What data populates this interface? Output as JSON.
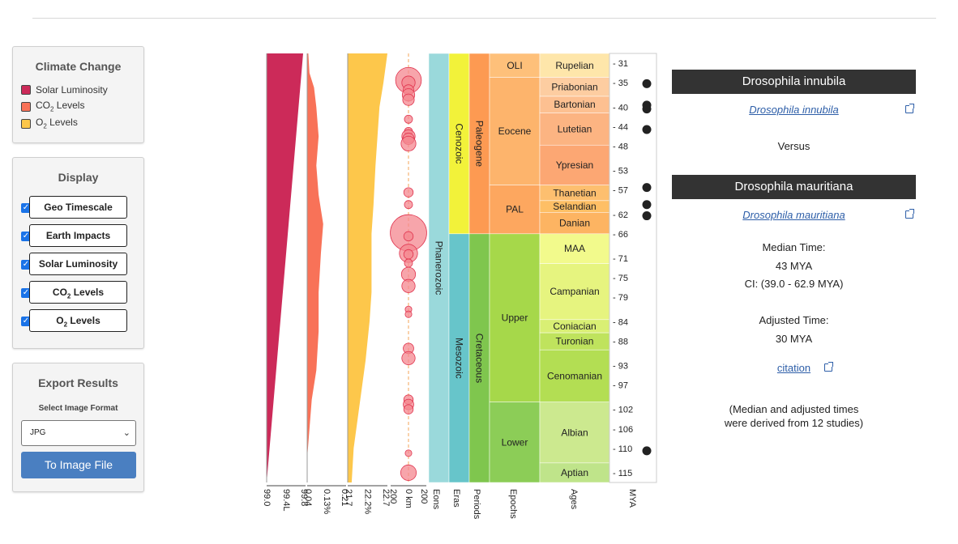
{
  "climate_panel": {
    "title": "Climate Change",
    "items": [
      {
        "label_pre": "Solar Luminosity",
        "sub": "",
        "label_post": "",
        "color": "#cc2a59"
      },
      {
        "label_pre": "CO",
        "sub": "2",
        "label_post": " Levels",
        "color": "#f87258"
      },
      {
        "label_pre": "O",
        "sub": "2",
        "label_post": " Levels",
        "color": "#fdc74b"
      }
    ]
  },
  "display_panel": {
    "title": "Display",
    "check_mark": "✓",
    "items": [
      {
        "label_pre": "Geo Timescale",
        "sub": "",
        "label_post": ""
      },
      {
        "label_pre": "Earth Impacts",
        "sub": "",
        "label_post": ""
      },
      {
        "label_pre": "Solar Luminosity",
        "sub": "",
        "label_post": ""
      },
      {
        "label_pre": "CO",
        "sub": "2",
        "label_post": " Levels"
      },
      {
        "label_pre": "O",
        "sub": "2",
        "label_post": " Levels"
      }
    ]
  },
  "export_panel": {
    "title": "Export Results",
    "select_label": "Select Image Format",
    "format": "JPG",
    "button": "To Image File"
  },
  "chart_data": {
    "type": "geologic-timeline",
    "axis_ticks": {
      "solar": [
        "99.0",
        "99.4L",
        "99.8"
      ],
      "co2": [
        "0.04",
        "0.13%",
        "0.21"
      ],
      "o2": [
        "21.7",
        "22.2%",
        "22.7"
      ],
      "impacts": [
        "200",
        "0 km",
        "200"
      ]
    },
    "column_labels": [
      "Eons",
      "Eras",
      "Periods",
      "Epochs",
      "Ages",
      "MYA"
    ],
    "mya_ticks": [
      "31",
      "35",
      "40",
      "44",
      "48",
      "53",
      "57",
      "62",
      "66",
      "71",
      "75",
      "79",
      "84",
      "88",
      "93",
      "97",
      "102",
      "106",
      "110",
      "115"
    ],
    "eons": [
      {
        "name": "Phanerozoic",
        "color": "#9ad9db",
        "start": 29,
        "end": 117
      }
    ],
    "eras": [
      {
        "name": "Cenozoic",
        "color": "#f2f23a",
        "start": 29,
        "end": 66
      },
      {
        "name": "Mesozoic",
        "color": "#67c5ca",
        "start": 66,
        "end": 117
      }
    ],
    "periods": [
      {
        "name": "Paleogene",
        "color": "#fd9a52",
        "start": 29,
        "end": 66
      },
      {
        "name": "Cretaceous",
        "color": "#7fc64e",
        "start": 66,
        "end": 117
      }
    ],
    "epochs": [
      {
        "name": "OLI",
        "color": "#fec07a",
        "start": 29,
        "end": 33.9
      },
      {
        "name": "Eocene",
        "color": "#fdb46c",
        "start": 33.9,
        "end": 56
      },
      {
        "name": "PAL",
        "color": "#fda75f",
        "start": 56,
        "end": 66
      },
      {
        "name": "Upper",
        "color": "#a6d84a",
        "start": 66,
        "end": 100.5
      },
      {
        "name": "Lower",
        "color": "#8ccd57",
        "start": 100.5,
        "end": 117
      }
    ],
    "ages": [
      {
        "name": "Rupelian",
        "color": "#fee6aa",
        "start": 29,
        "end": 33.9
      },
      {
        "name": "Priabonian",
        "color": "#fdcda1",
        "start": 33.9,
        "end": 37.8
      },
      {
        "name": "Bartonian",
        "color": "#fdc091",
        "start": 37.8,
        "end": 41.2
      },
      {
        "name": "Lutetian",
        "color": "#fcb482",
        "start": 41.2,
        "end": 47.8
      },
      {
        "name": "Ypresian",
        "color": "#fca773",
        "start": 47.8,
        "end": 56
      },
      {
        "name": "Thanetian",
        "color": "#fdbf6f",
        "start": 56,
        "end": 59.2
      },
      {
        "name": "Selandian",
        "color": "#febf65",
        "start": 59.2,
        "end": 61.6
      },
      {
        "name": "Danian",
        "color": "#fdb462",
        "start": 61.6,
        "end": 66
      },
      {
        "name": "MAA",
        "color": "#f2fa8c",
        "start": 66,
        "end": 72.1
      },
      {
        "name": "Campanian",
        "color": "#e6f47f",
        "start": 72.1,
        "end": 83.6
      },
      {
        "name": "Coniacian",
        "color": "#d9ef74",
        "start": 83.6,
        "end": 86.3
      },
      {
        "name": "Turonian",
        "color": "#bfe35d",
        "start": 86.3,
        "end": 89.8
      },
      {
        "name": "Cenomanian",
        "color": "#b3de53",
        "start": 89.8,
        "end": 100.5
      },
      {
        "name": "Albian",
        "color": "#cce98f",
        "start": 100.5,
        "end": 113
      },
      {
        "name": "Aptian",
        "color": "#bfe48a",
        "start": 113,
        "end": 117
      }
    ],
    "impacts": [
      {
        "mya": 34.5,
        "km": 30
      },
      {
        "mya": 35.0,
        "km": 8
      },
      {
        "mya": 36.5,
        "km": 5
      },
      {
        "mya": 37.5,
        "km": 7
      },
      {
        "mya": 38.5,
        "km": 6
      },
      {
        "mya": 42.5,
        "km": 3
      },
      {
        "mya": 45,
        "km": 3
      },
      {
        "mya": 46,
        "km": 8
      },
      {
        "mya": 46.5,
        "km": 6
      },
      {
        "mya": 47.5,
        "km": 10
      },
      {
        "mya": 57.5,
        "km": 4
      },
      {
        "mya": 60,
        "km": 3
      },
      {
        "mya": 65.8,
        "km": 60
      },
      {
        "mya": 66.5,
        "km": 4
      },
      {
        "mya": 70,
        "km": 15
      },
      {
        "mya": 70.2,
        "km": 4
      },
      {
        "mya": 72,
        "km": 3
      },
      {
        "mya": 74.3,
        "km": 9
      },
      {
        "mya": 76.7,
        "km": 8
      },
      {
        "mya": 81.5,
        "km": 2
      },
      {
        "mya": 82.5,
        "km": 2
      },
      {
        "mya": 89.5,
        "km": 5
      },
      {
        "mya": 91.5,
        "km": 8
      },
      {
        "mya": 100,
        "km": 4
      },
      {
        "mya": 101,
        "km": 5
      },
      {
        "mya": 102,
        "km": 4
      },
      {
        "mya": 111,
        "km": 2
      },
      {
        "mya": 115,
        "km": 11
      }
    ],
    "divergence_markers_mya": [
      35.2,
      39.6,
      40.4,
      44.6,
      56.5,
      60.0,
      62.3,
      110.5
    ],
    "solar_luminosity": [
      [
        29,
        99.75
      ],
      [
        117,
        99.0
      ]
    ],
    "co2_levels": [
      [
        29,
        0.045
      ],
      [
        33,
        0.05
      ],
      [
        36,
        0.07
      ],
      [
        40,
        0.08
      ],
      [
        46,
        0.09
      ],
      [
        52,
        0.08
      ],
      [
        58,
        0.09
      ],
      [
        64,
        0.11
      ],
      [
        70,
        0.1
      ],
      [
        78,
        0.09
      ],
      [
        86,
        0.09
      ],
      [
        94,
        0.08
      ],
      [
        100,
        0.06
      ],
      [
        106,
        0.05
      ],
      [
        112,
        0.04
      ],
      [
        116,
        0.04
      ]
    ],
    "o2_levels": [
      [
        29,
        22.7
      ],
      [
        35,
        22.6
      ],
      [
        40,
        22.5
      ],
      [
        46,
        22.45
      ],
      [
        52,
        22.4
      ],
      [
        60,
        22.35
      ],
      [
        66,
        22.3
      ],
      [
        72,
        22.3
      ],
      [
        78,
        22.3
      ],
      [
        84,
        22.25
      ],
      [
        92,
        22.15
      ],
      [
        98,
        22.05
      ],
      [
        104,
        21.95
      ],
      [
        110,
        21.85
      ],
      [
        117,
        21.8
      ]
    ],
    "mya_range": [
      29,
      117
    ],
    "colors": {
      "solar": "#cc2a59",
      "co2": "#f87258",
      "o2": "#fdc74b",
      "impact": "#f4878f",
      "impact_stroke": "#e0344f",
      "marker": "#222222"
    }
  },
  "result": {
    "taxon_a": "Drosophila innubila",
    "taxon_b": "Drosophila mauritiana",
    "versus": "Versus",
    "median_label": "Median Time:",
    "median_value": "43 MYA",
    "ci": "CI: (39.0 - 62.9 MYA)",
    "adjusted_label": "Adjusted Time:",
    "adjusted_value": "30 MYA",
    "citation": "citation",
    "note_line1": "(Median and adjusted times",
    "note_line2": "were derived from 12 studies)"
  }
}
